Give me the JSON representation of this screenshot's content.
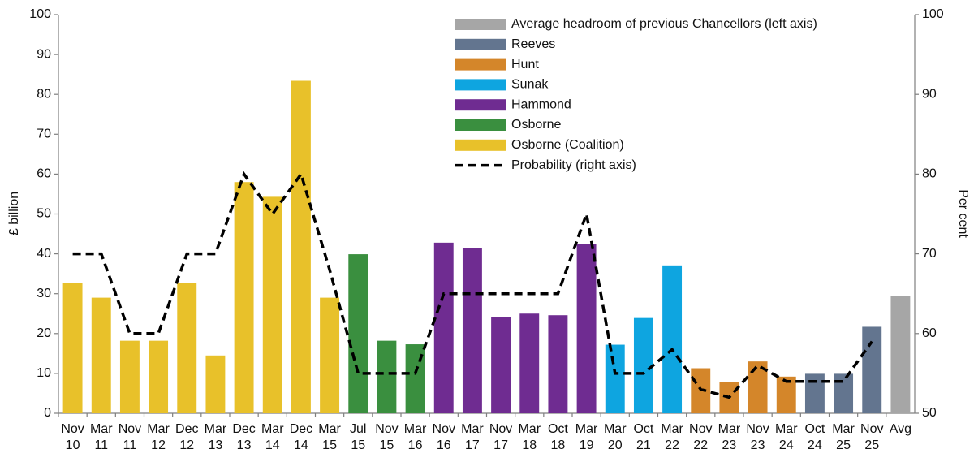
{
  "chart_data": {
    "type": "bar",
    "ylabel": "£ billion",
    "y2label": "Per cent",
    "categories": [
      [
        "Nov",
        "10"
      ],
      [
        "Mar",
        "11"
      ],
      [
        "Nov",
        "11"
      ],
      [
        "Mar",
        "12"
      ],
      [
        "Dec",
        "12"
      ],
      [
        "Mar",
        "13"
      ],
      [
        "Dec",
        "13"
      ],
      [
        "Mar",
        "14"
      ],
      [
        "Dec",
        "14"
      ],
      [
        "Mar",
        "15"
      ],
      [
        "Jul",
        "15"
      ],
      [
        "Nov",
        "15"
      ],
      [
        "Mar",
        "16"
      ],
      [
        "Nov",
        "16"
      ],
      [
        "Mar",
        "17"
      ],
      [
        "Nov",
        "17"
      ],
      [
        "Mar",
        "18"
      ],
      [
        "Oct",
        "18"
      ],
      [
        "Mar",
        "19"
      ],
      [
        "Mar",
        "20"
      ],
      [
        "Oct",
        "21"
      ],
      [
        "Mar",
        "22"
      ],
      [
        "Nov",
        "22"
      ],
      [
        "Mar",
        "23"
      ],
      [
        "Nov",
        "23"
      ],
      [
        "Mar",
        "24"
      ],
      [
        "Oct",
        "24"
      ],
      [
        "Mar",
        "25"
      ],
      [
        "Nov",
        "25"
      ],
      [
        "Avg"
      ]
    ],
    "series": [
      {
        "name": "Average headroom of previous Chancellors (left axis)",
        "color": "#a6a6a6",
        "values": [
          null,
          null,
          null,
          null,
          null,
          null,
          null,
          null,
          null,
          null,
          null,
          null,
          null,
          null,
          null,
          null,
          null,
          null,
          null,
          null,
          null,
          null,
          null,
          null,
          null,
          null,
          null,
          null,
          null,
          29.4
        ]
      },
      {
        "name": "Reeves",
        "color": "#63758f",
        "values": [
          null,
          null,
          null,
          null,
          null,
          null,
          null,
          null,
          null,
          null,
          null,
          null,
          null,
          null,
          null,
          null,
          null,
          null,
          null,
          null,
          null,
          null,
          null,
          null,
          null,
          null,
          9.9,
          9.9,
          21.7,
          null
        ]
      },
      {
        "name": "Hunt",
        "color": "#d4862a",
        "values": [
          null,
          null,
          null,
          null,
          null,
          null,
          null,
          null,
          null,
          null,
          null,
          null,
          null,
          null,
          null,
          null,
          null,
          null,
          null,
          null,
          null,
          null,
          11.3,
          7.9,
          13,
          9.2,
          null,
          null,
          null,
          null
        ]
      },
      {
        "name": "Sunak",
        "color": "#0ea5e0",
        "values": [
          null,
          null,
          null,
          null,
          null,
          null,
          null,
          null,
          null,
          null,
          null,
          null,
          null,
          null,
          null,
          null,
          null,
          null,
          null,
          17.2,
          23.9,
          37.1,
          null,
          null,
          null,
          null,
          null,
          null,
          null,
          null
        ]
      },
      {
        "name": "Hammond",
        "color": "#6f2c91",
        "values": [
          null,
          null,
          null,
          null,
          null,
          null,
          null,
          null,
          null,
          null,
          null,
          null,
          null,
          42.8,
          41.5,
          24.1,
          25,
          24.6,
          42.5,
          null,
          null,
          null,
          null,
          null,
          null,
          null,
          null,
          null,
          null,
          null
        ]
      },
      {
        "name": "Osborne",
        "color": "#3a8f3f",
        "values": [
          null,
          null,
          null,
          null,
          null,
          null,
          null,
          null,
          null,
          null,
          39.9,
          18.2,
          17.3,
          null,
          null,
          null,
          null,
          null,
          null,
          null,
          null,
          null,
          null,
          null,
          null,
          null,
          null,
          null,
          null,
          null
        ]
      },
      {
        "name": "Osborne (Coalition)",
        "color": "#e8c12a",
        "values": [
          32.7,
          29,
          18.2,
          18.2,
          32.7,
          14.5,
          58,
          54.3,
          83.4,
          29,
          null,
          null,
          null,
          null,
          null,
          null,
          null,
          null,
          null,
          null,
          null,
          null,
          null,
          null,
          null,
          null,
          null,
          null,
          null,
          null
        ]
      },
      {
        "name": "Probability (right axis)",
        "color": "#000000",
        "type": "line",
        "axis": "y2",
        "dashed": true,
        "values": [
          70,
          70,
          60,
          60,
          70,
          70,
          80,
          75,
          80,
          68,
          55,
          55,
          55,
          65,
          65,
          65,
          65,
          65,
          75,
          55,
          55,
          58,
          53,
          52,
          56,
          54,
          54,
          54,
          59,
          null
        ]
      }
    ],
    "ylim": [
      0,
      100
    ],
    "yticks": [
      0,
      10,
      20,
      30,
      40,
      50,
      60,
      70,
      80,
      90,
      100
    ],
    "y2lim": [
      50,
      100
    ],
    "y2ticks": [
      50,
      60,
      70,
      80,
      90,
      100
    ],
    "legend": "top-right"
  }
}
